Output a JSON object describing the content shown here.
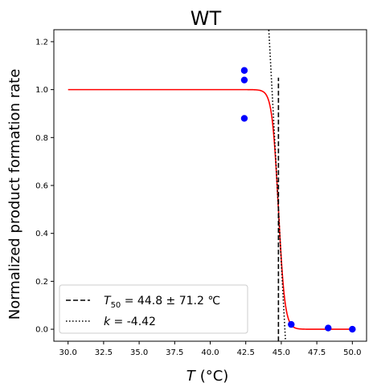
{
  "chart_data": {
    "type": "scatter",
    "title": "WT",
    "xlabel": "(°C)",
    "xlabel_var": "T",
    "ylabel": "Normalized product formation rate",
    "xlim": [
      29.0,
      51.0
    ],
    "ylim": [
      -0.05,
      1.25
    ],
    "xticks": [
      30.0,
      32.5,
      35.0,
      37.5,
      40.0,
      42.5,
      45.0,
      47.5,
      50.0
    ],
    "xtick_labels": [
      "30.0",
      "32.5",
      "35.0",
      "37.5",
      "40.0",
      "42.5",
      "45.0",
      "47.5",
      "50.0"
    ],
    "yticks": [
      0.0,
      0.2,
      0.4,
      0.6,
      0.8,
      1.0,
      1.2
    ],
    "ytick_labels": [
      "0.0",
      "0.2",
      "0.4",
      "0.6",
      "0.8",
      "1.0",
      "1.2"
    ],
    "points": {
      "color": "#0000ff",
      "x": [
        42.4,
        42.4,
        42.4,
        45.7,
        48.3,
        50.0
      ],
      "y": [
        1.08,
        1.04,
        0.88,
        0.02,
        0.005,
        0.0
      ]
    },
    "fit_curve": {
      "color": "#ff0000",
      "T50": 44.8,
      "k": -4.42,
      "x_range": [
        30.0,
        50.0
      ]
    },
    "t50_line": {
      "x": 44.8,
      "y_range": [
        -0.05,
        1.05
      ],
      "color": "#000000",
      "style": "dashed"
    },
    "k_line": {
      "x_range": [
        44.05,
        45.3
      ],
      "color": "#000000",
      "style": "dotted"
    },
    "legend": {
      "placement": "lower-left",
      "t50": {
        "symbol": "T",
        "subscript": "50",
        "text": " = 44.8 ± 71.2 ℃"
      },
      "k": {
        "symbol": "k",
        "text": " = -4.42"
      }
    }
  }
}
